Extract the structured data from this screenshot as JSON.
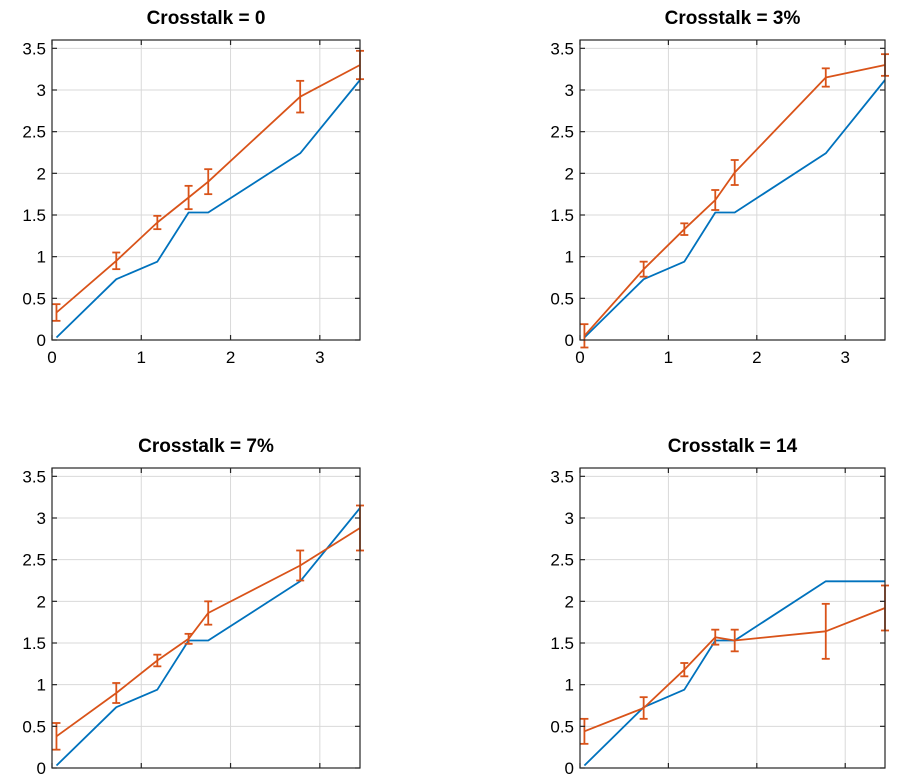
{
  "chart_data": [
    {
      "type": "line",
      "title": "Crosstalk = 0",
      "xlim": [
        0,
        3.45
      ],
      "ylim": [
        0,
        3.6
      ],
      "x_ticks": [
        "0",
        "1",
        "2",
        "3"
      ],
      "y_ticks": [
        "0",
        "0.5",
        "1",
        "1.5",
        "2",
        "2.5",
        "3",
        "3.5"
      ],
      "grid": true,
      "series": [
        {
          "color": "#0072BD",
          "x": [
            0.05,
            0.72,
            1.18,
            1.53,
            1.75,
            2.78,
            3.45
          ],
          "y": [
            0.03,
            0.73,
            0.94,
            1.53,
            1.53,
            2.24,
            3.12
          ]
        },
        {
          "color": "#D95319",
          "x": [
            0.05,
            0.72,
            1.18,
            1.53,
            1.75,
            2.78,
            3.45
          ],
          "y": [
            0.33,
            0.95,
            1.41,
            1.71,
            1.9,
            2.92,
            3.3
          ],
          "err": [
            0.1,
            0.1,
            0.08,
            0.14,
            0.15,
            0.19,
            0.17
          ]
        }
      ]
    },
    {
      "type": "line",
      "title": "Crosstalk = 3%",
      "xlim": [
        0,
        3.45
      ],
      "ylim": [
        0,
        3.6
      ],
      "x_ticks": [
        "0",
        "1",
        "2",
        "3"
      ],
      "y_ticks": [
        "0",
        "0.5",
        "1",
        "1.5",
        "2",
        "2.5",
        "3",
        "3.5"
      ],
      "grid": true,
      "series": [
        {
          "color": "#0072BD",
          "x": [
            0.05,
            0.72,
            1.18,
            1.53,
            1.75,
            2.78,
            3.45
          ],
          "y": [
            0.03,
            0.73,
            0.94,
            1.53,
            1.53,
            2.24,
            3.12
          ]
        },
        {
          "color": "#D95319",
          "x": [
            0.05,
            0.72,
            1.18,
            1.53,
            1.75,
            2.78,
            3.45
          ],
          "y": [
            0.05,
            0.85,
            1.33,
            1.68,
            2.01,
            3.15,
            3.3
          ],
          "err": [
            0.14,
            0.09,
            0.07,
            0.12,
            0.15,
            0.11,
            0.13
          ]
        }
      ]
    },
    {
      "type": "line",
      "title": "Crosstalk = 7%",
      "xlim": [
        0,
        3.45
      ],
      "ylim": [
        0,
        3.6
      ],
      "x_ticks": [],
      "y_ticks": [
        "0",
        "0.5",
        "1",
        "1.5",
        "2",
        "2.5",
        "3",
        "3.5"
      ],
      "grid": true,
      "series": [
        {
          "color": "#0072BD",
          "x": [
            0.05,
            0.72,
            1.18,
            1.53,
            1.75,
            2.78,
            3.45
          ],
          "y": [
            0.03,
            0.73,
            0.94,
            1.53,
            1.53,
            2.24,
            3.12
          ]
        },
        {
          "color": "#D95319",
          "x": [
            0.05,
            0.72,
            1.18,
            1.53,
            1.75,
            2.78,
            3.45
          ],
          "y": [
            0.38,
            0.9,
            1.29,
            1.55,
            1.86,
            2.43,
            2.88
          ],
          "err": [
            0.16,
            0.12,
            0.07,
            0.06,
            0.14,
            0.18,
            0.27
          ]
        }
      ]
    },
    {
      "type": "line",
      "title": "Crosstalk = 14",
      "xlim": [
        0,
        3.45
      ],
      "ylim": [
        0,
        3.6
      ],
      "x_ticks": [],
      "y_ticks": [
        "0",
        "0.5",
        "1",
        "1.5",
        "2",
        "2.5",
        "3",
        "3.5"
      ],
      "grid": true,
      "series": [
        {
          "color": "#0072BD",
          "x": [
            0.05,
            0.72,
            1.18,
            1.53,
            1.75,
            2.78,
            3.45
          ],
          "y": [
            0.03,
            0.73,
            0.94,
            1.53,
            1.53,
            2.24,
            2.24
          ]
        },
        {
          "color": "#D95319",
          "x": [
            0.05,
            0.72,
            1.18,
            1.53,
            1.75,
            2.78,
            3.45
          ],
          "y": [
            0.44,
            0.72,
            1.18,
            1.57,
            1.53,
            1.64,
            1.92
          ],
          "err": [
            0.15,
            0.13,
            0.08,
            0.09,
            0.13,
            0.33,
            0.27
          ]
        }
      ]
    }
  ]
}
